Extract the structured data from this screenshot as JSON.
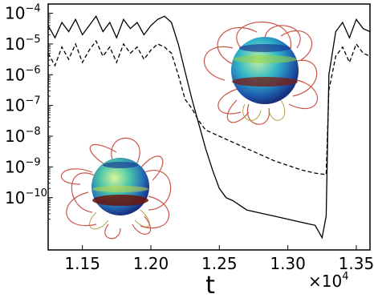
{
  "chart_data": {
    "type": "line",
    "xlabel": "t",
    "x_multiplier": {
      "base": "×10",
      "exp": "4"
    },
    "xlim": [
      1.125,
      1.36
    ],
    "ylim_log10": [
      -11.7,
      -3.7
    ],
    "y_log": true,
    "x_ticks": [
      "1.15",
      "1.20",
      "1.25",
      "1.30",
      "1.35"
    ],
    "x_tick_values": [
      1.15,
      1.2,
      1.25,
      1.3,
      1.35
    ],
    "y_ticks": [
      {
        "base": "10",
        "exp": "−4",
        "value": -4
      },
      {
        "base": "10",
        "exp": "−5",
        "value": -5
      },
      {
        "base": "10",
        "exp": "−6",
        "value": -6
      },
      {
        "base": "10",
        "exp": "−7",
        "value": -7
      },
      {
        "base": "10",
        "exp": "−8",
        "value": -8
      },
      {
        "base": "10",
        "exp": "−9",
        "value": -9
      },
      {
        "base": "10",
        "exp": "−10",
        "value": -10
      }
    ],
    "series": [
      {
        "style": "solid",
        "color": "#000000",
        "x": [
          1.125,
          1.13,
          1.135,
          1.14,
          1.145,
          1.15,
          1.155,
          1.16,
          1.165,
          1.17,
          1.175,
          1.18,
          1.185,
          1.19,
          1.195,
          1.2,
          1.205,
          1.21,
          1.215,
          1.22,
          1.225,
          1.23,
          1.235,
          1.24,
          1.245,
          1.25,
          1.255,
          1.26,
          1.27,
          1.28,
          1.29,
          1.3,
          1.31,
          1.32,
          1.325,
          1.328,
          1.33,
          1.335,
          1.34,
          1.345,
          1.35,
          1.355,
          1.36
        ],
        "log10y": [
          -4.4,
          -4.8,
          -4.3,
          -4.6,
          -4.2,
          -4.7,
          -4.4,
          -4.1,
          -4.6,
          -4.3,
          -4.8,
          -4.2,
          -4.5,
          -4.3,
          -4.7,
          -4.4,
          -4.2,
          -4.1,
          -4.3,
          -5.0,
          -5.9,
          -6.8,
          -7.6,
          -8.4,
          -9.1,
          -9.7,
          -10.0,
          -10.1,
          -10.4,
          -10.5,
          -10.6,
          -10.7,
          -10.8,
          -10.9,
          -11.3,
          -10.6,
          -6.0,
          -4.6,
          -4.3,
          -4.8,
          -4.2,
          -4.5,
          -4.6
        ]
      },
      {
        "style": "dashed",
        "color": "#000000",
        "x": [
          1.125,
          1.13,
          1.135,
          1.14,
          1.145,
          1.15,
          1.155,
          1.16,
          1.165,
          1.17,
          1.175,
          1.18,
          1.185,
          1.19,
          1.195,
          1.2,
          1.205,
          1.21,
          1.215,
          1.22,
          1.225,
          1.23,
          1.235,
          1.24,
          1.245,
          1.25,
          1.26,
          1.27,
          1.28,
          1.29,
          1.3,
          1.31,
          1.32,
          1.328,
          1.33,
          1.335,
          1.34,
          1.345,
          1.35,
          1.355,
          1.36
        ],
        "log10y": [
          -5.3,
          -5.7,
          -5.1,
          -5.5,
          -5.0,
          -5.6,
          -5.2,
          -4.9,
          -5.4,
          -5.1,
          -5.6,
          -5.0,
          -5.3,
          -5.1,
          -5.5,
          -5.2,
          -5.0,
          -5.1,
          -5.3,
          -6.0,
          -6.8,
          -7.1,
          -7.5,
          -7.8,
          -7.9,
          -8.0,
          -8.2,
          -8.4,
          -8.6,
          -8.8,
          -8.95,
          -9.1,
          -9.2,
          -9.25,
          -6.5,
          -5.4,
          -5.1,
          -5.6,
          -5.0,
          -5.3,
          -5.4
        ]
      }
    ]
  }
}
